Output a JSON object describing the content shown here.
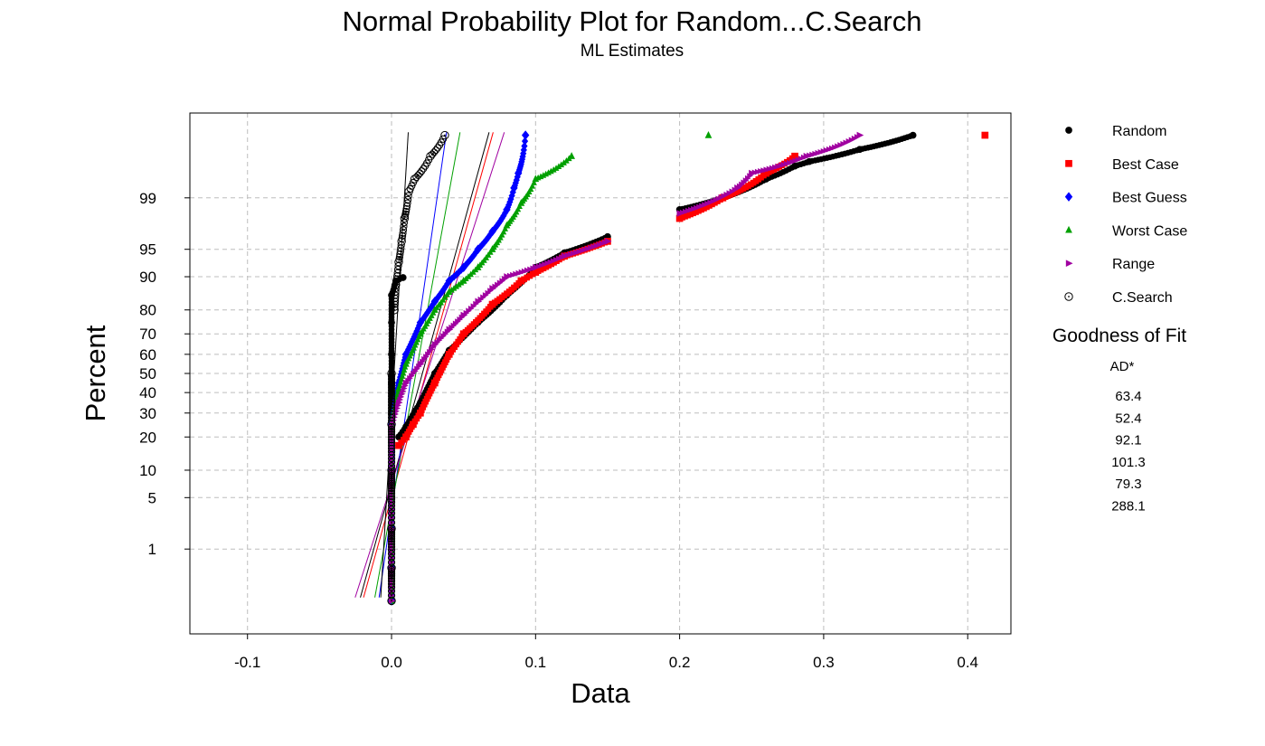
{
  "chart_data": {
    "type": "scatter",
    "title": "Normal Probability Plot for Random...C.Search",
    "subtitle": "ML Estimates",
    "xlabel": "Data",
    "ylabel": "Percent",
    "xlim": [
      -0.14,
      0.43
    ],
    "x_ticks": [
      "-0.1",
      "0.0",
      "0.1",
      "0.2",
      "0.3",
      "0.4"
    ],
    "x_tick_values": [
      -0.1,
      0.0,
      0.1,
      0.2,
      0.3,
      0.4
    ],
    "y_scale": "normal-probability",
    "y_ticks": [
      "1",
      "5",
      "10",
      "20",
      "30",
      "40",
      "50",
      "60",
      "70",
      "80",
      "90",
      "95",
      "99"
    ],
    "y_tick_values": [
      1,
      5,
      10,
      20,
      30,
      40,
      50,
      60,
      70,
      80,
      90,
      95,
      99
    ],
    "grid": true,
    "legend_position": "right",
    "series": [
      {
        "name": "Random",
        "color": "#000000",
        "marker": "circle",
        "fit": {
          "mean": 0.0214,
          "sd": 0.0145
        },
        "points": [
          [
            0,
            0.13
          ],
          [
            0,
            0.5
          ],
          [
            0,
            2
          ],
          [
            0,
            8
          ],
          [
            0,
            15
          ],
          [
            0,
            22
          ],
          [
            0,
            30
          ],
          [
            0,
            45
          ],
          [
            0,
            60
          ],
          [
            0,
            75
          ],
          [
            0,
            85
          ],
          [
            0.003,
            89
          ],
          [
            0.008,
            89.8
          ],
          [
            0.005,
            20
          ],
          [
            0.01,
            24
          ],
          [
            0.02,
            35
          ],
          [
            0.03,
            50
          ],
          [
            0.04,
            62
          ],
          [
            0.06,
            75
          ],
          [
            0.08,
            85
          ],
          [
            0.1,
            92
          ],
          [
            0.12,
            94.5
          ],
          [
            0.15,
            96.5
          ],
          [
            0.2,
            98.5
          ],
          [
            0.23,
            99
          ],
          [
            0.26,
            99.5
          ],
          [
            0.28,
            99.7
          ],
          [
            0.29,
            99.75
          ],
          [
            0.325,
            99.85
          ],
          [
            0.362,
            99.92
          ]
        ]
      },
      {
        "name": "Best Case",
        "color": "#ff0000",
        "marker": "square",
        "fit": {
          "mean": 0.0239,
          "sd": 0.0146
        },
        "points": [
          [
            0.005,
            17
          ],
          [
            0.01,
            20
          ],
          [
            0.015,
            25
          ],
          [
            0.02,
            30
          ],
          [
            0.03,
            45
          ],
          [
            0.04,
            60
          ],
          [
            0.05,
            70
          ],
          [
            0.07,
            82
          ],
          [
            0.09,
            89
          ],
          [
            0.1,
            91
          ],
          [
            0.12,
            94
          ],
          [
            0.15,
            96
          ],
          [
            0.2,
            98
          ],
          [
            0.23,
            99
          ],
          [
            0.26,
            99.6
          ],
          [
            0.28,
            99.8
          ],
          [
            0.412,
            99.92
          ]
        ]
      },
      {
        "name": "Best Guess",
        "color": "#0000ff",
        "marker": "diamond",
        "fit": {
          "mean": 0.0139,
          "sd": 0.0076
        },
        "points": [
          [
            0,
            0.13
          ],
          [
            0,
            0.5
          ],
          [
            0,
            2
          ],
          [
            0,
            10
          ],
          [
            0,
            25
          ],
          [
            0.005,
            45
          ],
          [
            0.01,
            60
          ],
          [
            0.02,
            75
          ],
          [
            0.03,
            83
          ],
          [
            0.04,
            89
          ],
          [
            0.05,
            92
          ],
          [
            0.06,
            95
          ],
          [
            0.07,
            97
          ],
          [
            0.08,
            98.5
          ],
          [
            0.085,
            99.3
          ],
          [
            0.088,
            99.6
          ],
          [
            0.093,
            99.92
          ]
        ]
      },
      {
        "name": "Worst Case",
        "color": "#00a000",
        "marker": "triangle-up",
        "fit": {
          "mean": 0.0169,
          "sd": 0.0096
        },
        "points": [
          [
            0,
            0.13
          ],
          [
            0,
            0.5
          ],
          [
            0,
            2
          ],
          [
            0,
            10
          ],
          [
            0,
            25
          ],
          [
            0.005,
            42
          ],
          [
            0.01,
            55
          ],
          [
            0.02,
            70
          ],
          [
            0.03,
            80
          ],
          [
            0.04,
            86
          ],
          [
            0.05,
            89
          ],
          [
            0.06,
            92
          ],
          [
            0.07,
            95
          ],
          [
            0.08,
            97.5
          ],
          [
            0.09,
            98.8
          ],
          [
            0.1,
            99.5
          ],
          [
            0.125,
            99.8
          ],
          [
            0.22,
            99.92
          ]
        ]
      },
      {
        "name": "Range",
        "color": "#a000a0",
        "marker": "triangle-right",
        "fit": {
          "mean": 0.0246,
          "sd": 0.0168
        },
        "points": [
          [
            0,
            0.13
          ],
          [
            0,
            0.5
          ],
          [
            0,
            2
          ],
          [
            0,
            10
          ],
          [
            0,
            24
          ],
          [
            0.005,
            35
          ],
          [
            0.01,
            45
          ],
          [
            0.02,
            55
          ],
          [
            0.03,
            65
          ],
          [
            0.04,
            72
          ],
          [
            0.05,
            78
          ],
          [
            0.06,
            83
          ],
          [
            0.07,
            87
          ],
          [
            0.08,
            90
          ],
          [
            0.1,
            92
          ],
          [
            0.12,
            94
          ],
          [
            0.15,
            96
          ],
          [
            0.2,
            98.3
          ],
          [
            0.24,
            99.3
          ],
          [
            0.25,
            99.6
          ],
          [
            0.288,
            99.8
          ],
          [
            0.325,
            99.92
          ]
        ]
      },
      {
        "name": "C.Search",
        "color": "#000000",
        "marker": "circle-dot",
        "fit": {
          "mean": 0.0017,
          "sd": 0.0031
        },
        "points": [
          [
            0,
            0.13
          ],
          [
            0,
            0.5
          ],
          [
            0,
            2
          ],
          [
            0,
            10
          ],
          [
            0,
            25
          ],
          [
            0,
            50
          ],
          [
            0.002,
            80
          ],
          [
            0.003,
            88
          ],
          [
            0.005,
            93
          ],
          [
            0.007,
            96
          ],
          [
            0.009,
            98
          ],
          [
            0.012,
            99.2
          ],
          [
            0.016,
            99.5
          ],
          [
            0.027,
            99.8
          ],
          [
            0.037,
            99.92
          ]
        ]
      }
    ],
    "goodness_of_fit": {
      "title": "Goodness of Fit",
      "stat_label": "AD*",
      "values": [
        "63.4",
        "52.4",
        "92.1",
        "101.3",
        "79.3",
        "288.1"
      ]
    }
  }
}
